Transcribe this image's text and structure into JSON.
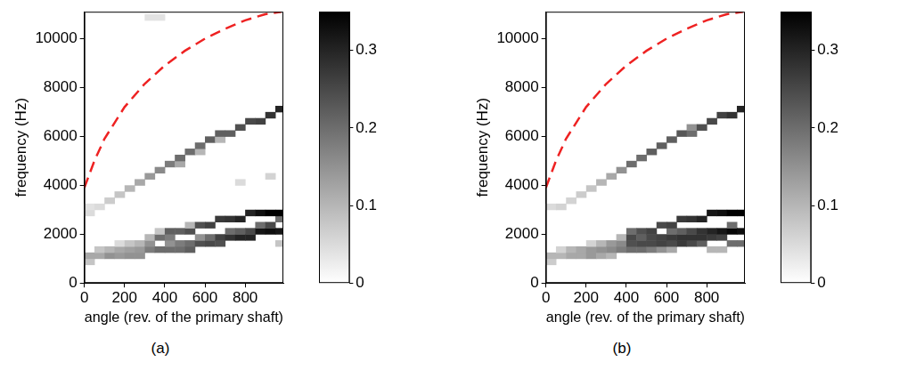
{
  "chart_data": [
    {
      "type": "heatmap",
      "caption": "(a)",
      "x_label": "angle (rev. of the primary shaft)",
      "y_label": "frequency (Hz)",
      "xlim": [
        0,
        990
      ],
      "xticks": [
        0,
        200,
        400,
        600,
        800
      ],
      "ylim": [
        0,
        11100
      ],
      "yticks": [
        0,
        2000,
        4000,
        6000,
        8000,
        10000
      ],
      "grid": false,
      "cell_width": 50,
      "cell_height": 250,
      "cells": [
        [
          0,
          750,
          0.08
        ],
        [
          0,
          1000,
          0.12
        ],
        [
          0,
          2750,
          0.05
        ],
        [
          0,
          3000,
          0.04
        ],
        [
          50,
          1000,
          0.12
        ],
        [
          50,
          1250,
          0.08
        ],
        [
          50,
          3000,
          0.05
        ],
        [
          100,
          1000,
          0.15
        ],
        [
          100,
          1250,
          0.1
        ],
        [
          100,
          3250,
          0.07
        ],
        [
          150,
          1000,
          0.14
        ],
        [
          150,
          1250,
          0.12
        ],
        [
          150,
          1500,
          0.05
        ],
        [
          150,
          3500,
          0.08
        ],
        [
          200,
          1000,
          0.15
        ],
        [
          200,
          1250,
          0.13
        ],
        [
          200,
          1500,
          0.08
        ],
        [
          200,
          3750,
          0.1
        ],
        [
          250,
          1000,
          0.15
        ],
        [
          250,
          1250,
          0.14
        ],
        [
          250,
          1500,
          0.1
        ],
        [
          250,
          4000,
          0.12
        ],
        [
          300,
          1250,
          0.18
        ],
        [
          300,
          1500,
          0.15
        ],
        [
          300,
          1750,
          0.1
        ],
        [
          300,
          4250,
          0.14
        ],
        [
          300,
          10750,
          0.04
        ],
        [
          350,
          1250,
          0.2
        ],
        [
          350,
          1750,
          0.2
        ],
        [
          350,
          2000,
          0.08
        ],
        [
          350,
          4500,
          0.16
        ],
        [
          350,
          10750,
          0.04
        ],
        [
          400,
          1250,
          0.2
        ],
        [
          400,
          1500,
          0.15
        ],
        [
          400,
          1750,
          0.18
        ],
        [
          400,
          2000,
          0.22
        ],
        [
          400,
          4750,
          0.18
        ],
        [
          450,
          1250,
          0.2
        ],
        [
          450,
          1500,
          0.18
        ],
        [
          450,
          2000,
          0.22
        ],
        [
          450,
          4750,
          0.12
        ],
        [
          450,
          5000,
          0.2
        ],
        [
          500,
          1250,
          0.22
        ],
        [
          500,
          1500,
          0.2
        ],
        [
          500,
          2000,
          0.24
        ],
        [
          500,
          2250,
          0.1
        ],
        [
          500,
          5250,
          0.2
        ],
        [
          550,
          1500,
          0.24
        ],
        [
          550,
          1750,
          0.15
        ],
        [
          550,
          2250,
          0.24
        ],
        [
          550,
          5250,
          0.1
        ],
        [
          550,
          5500,
          0.2
        ],
        [
          600,
          1500,
          0.25
        ],
        [
          600,
          1750,
          0.2
        ],
        [
          600,
          2250,
          0.26
        ],
        [
          600,
          5750,
          0.22
        ],
        [
          650,
          1500,
          0.24
        ],
        [
          650,
          1750,
          0.26
        ],
        [
          650,
          2500,
          0.27
        ],
        [
          650,
          5750,
          0.1
        ],
        [
          650,
          6000,
          0.22
        ],
        [
          700,
          1750,
          0.28
        ],
        [
          700,
          2000,
          0.2
        ],
        [
          700,
          2500,
          0.28
        ],
        [
          700,
          6000,
          0.22
        ],
        [
          750,
          1750,
          0.3
        ],
        [
          750,
          2000,
          0.22
        ],
        [
          750,
          2500,
          0.3
        ],
        [
          750,
          4000,
          0.05
        ],
        [
          750,
          6250,
          0.24
        ],
        [
          800,
          1750,
          0.3
        ],
        [
          800,
          2000,
          0.25
        ],
        [
          800,
          2750,
          0.3
        ],
        [
          800,
          6500,
          0.25
        ],
        [
          850,
          2000,
          0.32
        ],
        [
          850,
          2250,
          0.2
        ],
        [
          850,
          2750,
          0.33
        ],
        [
          850,
          6500,
          0.26
        ],
        [
          900,
          2000,
          0.33
        ],
        [
          900,
          2250,
          0.25
        ],
        [
          900,
          2750,
          0.35
        ],
        [
          900,
          4250,
          0.06
        ],
        [
          900,
          6750,
          0.28
        ],
        [
          950,
          1500,
          0.08
        ],
        [
          950,
          2000,
          0.32
        ],
        [
          950,
          2500,
          0.2
        ],
        [
          950,
          2750,
          0.35
        ],
        [
          950,
          7000,
          0.3
        ]
      ],
      "colorbar_lim": [
        0,
        0.35
      ],
      "colorbar_ticks": [
        0,
        0.1,
        0.2,
        0.3
      ],
      "series": [
        {
          "type": "line",
          "color": "#ee2222",
          "line_style": "dashed",
          "x": [
            0,
            50,
            100,
            200,
            300,
            400,
            500,
            600,
            700,
            800,
            900,
            980
          ],
          "values": [
            3900,
            5000,
            5900,
            7200,
            8150,
            8900,
            9500,
            10000,
            10400,
            10750,
            11000,
            11100
          ]
        }
      ]
    },
    {
      "type": "heatmap",
      "caption": "(b)",
      "x_label": "angle (rev. of the primary shaft)",
      "y_label": "frequency (Hz)",
      "xlim": [
        0,
        990
      ],
      "xticks": [
        0,
        200,
        400,
        600,
        800
      ],
      "ylim": [
        0,
        11100
      ],
      "yticks": [
        0,
        2000,
        4000,
        6000,
        8000,
        10000
      ],
      "grid": false,
      "cell_width": 50,
      "cell_height": 250,
      "cells": [
        [
          0,
          750,
          0.07
        ],
        [
          0,
          1000,
          0.1
        ],
        [
          0,
          3000,
          0.05
        ],
        [
          50,
          1000,
          0.1
        ],
        [
          50,
          1250,
          0.06
        ],
        [
          50,
          3000,
          0.06
        ],
        [
          100,
          1000,
          0.12
        ],
        [
          100,
          1250,
          0.1
        ],
        [
          100,
          3250,
          0.06
        ],
        [
          150,
          1000,
          0.12
        ],
        [
          150,
          1250,
          0.12
        ],
        [
          150,
          3500,
          0.07
        ],
        [
          200,
          1000,
          0.14
        ],
        [
          200,
          1250,
          0.14
        ],
        [
          200,
          1500,
          0.06
        ],
        [
          200,
          3750,
          0.08
        ],
        [
          250,
          1000,
          0.12
        ],
        [
          250,
          1250,
          0.15
        ],
        [
          250,
          1500,
          0.1
        ],
        [
          250,
          4000,
          0.1
        ],
        [
          300,
          1000,
          0.1
        ],
        [
          300,
          1250,
          0.16
        ],
        [
          300,
          1500,
          0.14
        ],
        [
          300,
          4250,
          0.12
        ],
        [
          350,
          1250,
          0.18
        ],
        [
          350,
          1500,
          0.16
        ],
        [
          350,
          1750,
          0.1
        ],
        [
          350,
          4500,
          0.15
        ],
        [
          400,
          1250,
          0.2
        ],
        [
          400,
          1500,
          0.24
        ],
        [
          400,
          1750,
          0.25
        ],
        [
          400,
          2000,
          0.2
        ],
        [
          400,
          4750,
          0.2
        ],
        [
          450,
          1250,
          0.2
        ],
        [
          450,
          1500,
          0.25
        ],
        [
          450,
          1750,
          0.22
        ],
        [
          450,
          2000,
          0.24
        ],
        [
          450,
          5000,
          0.2
        ],
        [
          500,
          1250,
          0.18
        ],
        [
          500,
          1500,
          0.25
        ],
        [
          500,
          1750,
          0.25
        ],
        [
          500,
          2000,
          0.26
        ],
        [
          500,
          5250,
          0.22
        ],
        [
          550,
          1250,
          0.15
        ],
        [
          550,
          1500,
          0.26
        ],
        [
          550,
          1750,
          0.26
        ],
        [
          550,
          2250,
          0.25
        ],
        [
          550,
          5500,
          0.22
        ],
        [
          600,
          1250,
          0.12
        ],
        [
          600,
          1500,
          0.25
        ],
        [
          600,
          1750,
          0.27
        ],
        [
          600,
          2000,
          0.2
        ],
        [
          600,
          2250,
          0.26
        ],
        [
          600,
          5750,
          0.22
        ],
        [
          650,
          1500,
          0.27
        ],
        [
          650,
          1750,
          0.28
        ],
        [
          650,
          2000,
          0.22
        ],
        [
          650,
          2500,
          0.27
        ],
        [
          650,
          6000,
          0.23
        ],
        [
          700,
          1500,
          0.25
        ],
        [
          700,
          1750,
          0.28
        ],
        [
          700,
          2000,
          0.25
        ],
        [
          700,
          2500,
          0.28
        ],
        [
          700,
          6000,
          0.2
        ],
        [
          700,
          6250,
          0.15
        ],
        [
          750,
          1500,
          0.22
        ],
        [
          750,
          1750,
          0.28
        ],
        [
          750,
          2000,
          0.28
        ],
        [
          750,
          2500,
          0.3
        ],
        [
          750,
          6250,
          0.24
        ],
        [
          800,
          1250,
          0.1
        ],
        [
          800,
          1750,
          0.27
        ],
        [
          800,
          2000,
          0.3
        ],
        [
          800,
          2750,
          0.32
        ],
        [
          800,
          6500,
          0.25
        ],
        [
          850,
          1250,
          0.1
        ],
        [
          850,
          1750,
          0.26
        ],
        [
          850,
          2000,
          0.32
        ],
        [
          850,
          2750,
          0.33
        ],
        [
          850,
          6750,
          0.26
        ],
        [
          900,
          1500,
          0.2
        ],
        [
          900,
          2000,
          0.34
        ],
        [
          900,
          2250,
          0.2
        ],
        [
          900,
          2750,
          0.35
        ],
        [
          900,
          6750,
          0.28
        ],
        [
          950,
          1500,
          0.2
        ],
        [
          950,
          2000,
          0.33
        ],
        [
          950,
          2750,
          0.35
        ],
        [
          950,
          7000,
          0.3
        ]
      ],
      "colorbar_lim": [
        0,
        0.35
      ],
      "colorbar_ticks": [
        0,
        0.1,
        0.2,
        0.3
      ],
      "series": [
        {
          "type": "line",
          "color": "#ee2222",
          "line_style": "dashed",
          "x": [
            0,
            50,
            100,
            200,
            300,
            400,
            500,
            600,
            700,
            800,
            900,
            980
          ],
          "values": [
            3900,
            5000,
            5900,
            7200,
            8150,
            8900,
            9500,
            10000,
            10400,
            10750,
            11000,
            11100
          ]
        }
      ]
    }
  ]
}
